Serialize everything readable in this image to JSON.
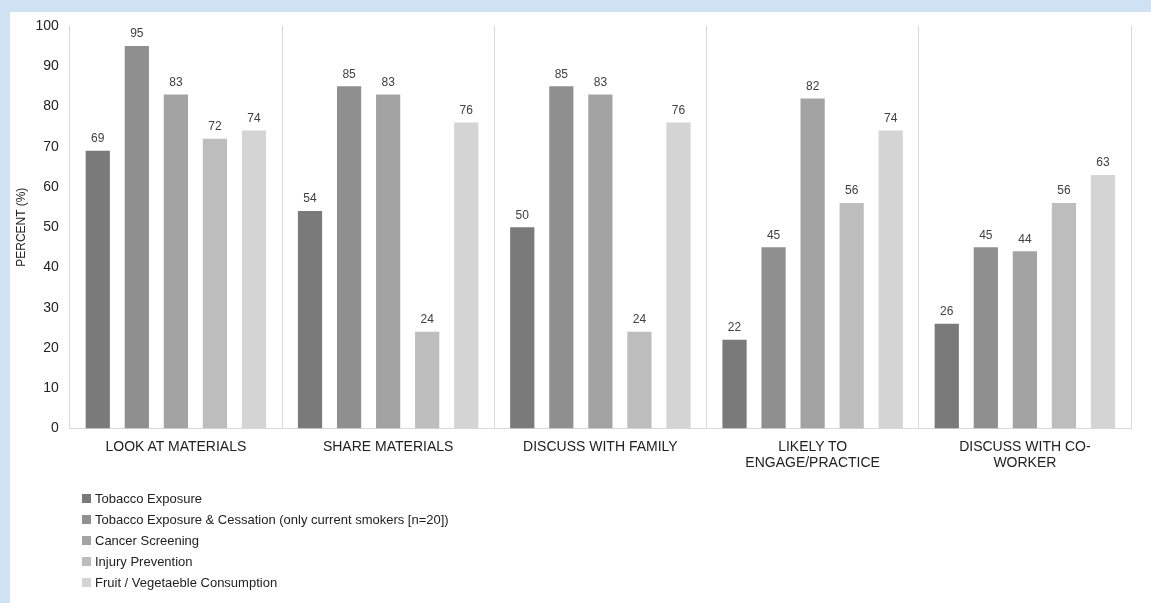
{
  "chart_data": {
    "type": "bar",
    "ylabel": "PERCENT (%)",
    "categories": [
      "LOOK AT MATERIALS",
      "SHARE MATERIALS",
      "DISCUSS WITH FAMILY",
      "LIKELY TO ENGAGE/PRACTICE",
      "DISCUSS WITH CO-WORKER"
    ],
    "series": [
      {
        "name": "Tobacco Exposure",
        "color": "#7a7a7a",
        "values": [
          69,
          54,
          50,
          22,
          26
        ]
      },
      {
        "name": "Tobacco Exposure & Cessation (only current smokers [n=20])",
        "color": "#8f8f8f",
        "values": [
          95,
          85,
          85,
          45,
          45
        ]
      },
      {
        "name": "Cancer Screening",
        "color": "#a3a3a3",
        "values": [
          83,
          83,
          83,
          82,
          44
        ]
      },
      {
        "name": "Injury Prevention",
        "color": "#bdbdbd",
        "values": [
          72,
          24,
          24,
          56,
          56
        ]
      },
      {
        "name": "Fruit / Vegetaeble Consumption",
        "color": "#d4d4d4",
        "values": [
          74,
          76,
          76,
          74,
          63
        ]
      }
    ],
    "ylim": [
      0,
      100
    ],
    "yticks": [
      0,
      10,
      20,
      30,
      40,
      50,
      60,
      70,
      80,
      90,
      100
    ],
    "grid": "x",
    "legend": "bottom",
    "data_labels": true
  }
}
